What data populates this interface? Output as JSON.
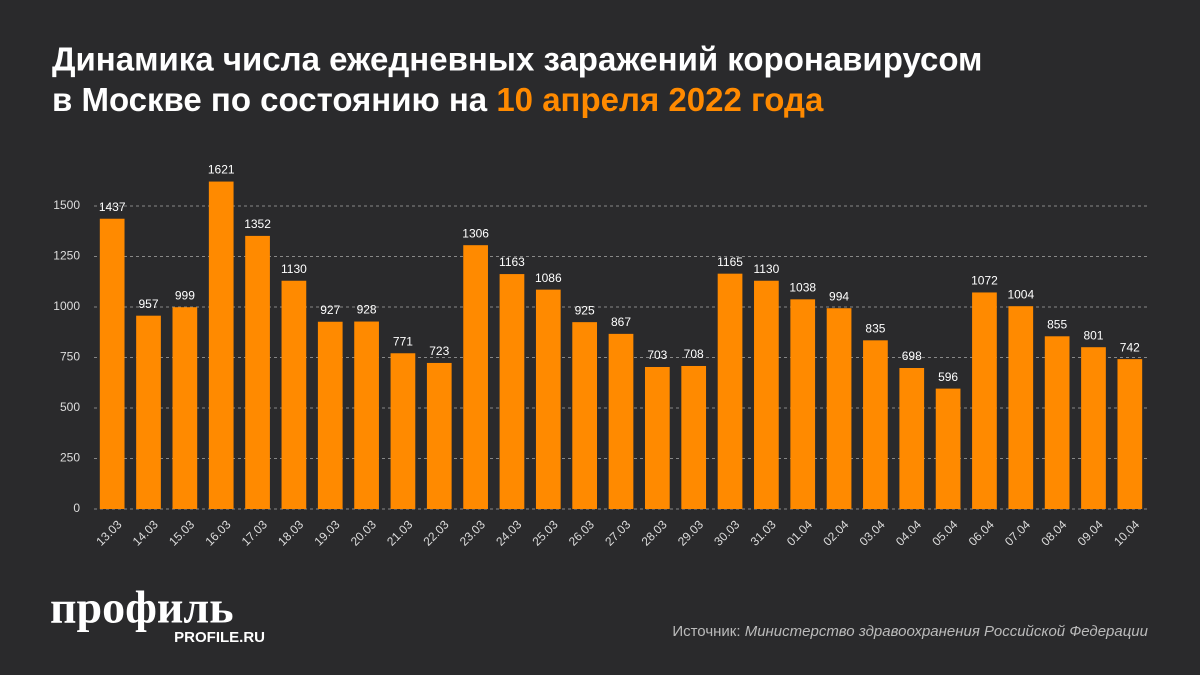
{
  "chart_data": {
    "type": "bar",
    "title_parts": [
      "Динамика числа ежедневных заражений коронавирусом",
      "в Москве по состоянию на",
      "10 апреля 2022 года"
    ],
    "categories": [
      "13.03",
      "14.03",
      "15.03",
      "16.03",
      "17.03",
      "18.03",
      "19.03",
      "20.03",
      "21.03",
      "22.03",
      "23.03",
      "24.03",
      "25.03",
      "26.03",
      "27.03",
      "28.03",
      "29.03",
      "30.03",
      "31.03",
      "01.04",
      "02.04",
      "03.04",
      "04.04",
      "05.04",
      "06.04",
      "07.04",
      "08.04",
      "09.04",
      "10.04"
    ],
    "values": [
      1437,
      957,
      999,
      1621,
      1352,
      1130,
      927,
      928,
      771,
      723,
      1306,
      1163,
      1086,
      925,
      867,
      703,
      708,
      1165,
      1130,
      1038,
      994,
      835,
      698,
      596,
      1072,
      1004,
      855,
      801,
      742
    ],
    "color": "#ff8a00",
    "ylim": [
      0,
      1750
    ],
    "yticks": [
      0,
      250,
      500,
      750,
      1000,
      1250,
      1500
    ],
    "grid": true,
    "logo": "профиль",
    "logo_url": "PROFILE.RU",
    "source_label": "Источник:",
    "source": "Министерство здравоохранения Российской Федерации"
  }
}
